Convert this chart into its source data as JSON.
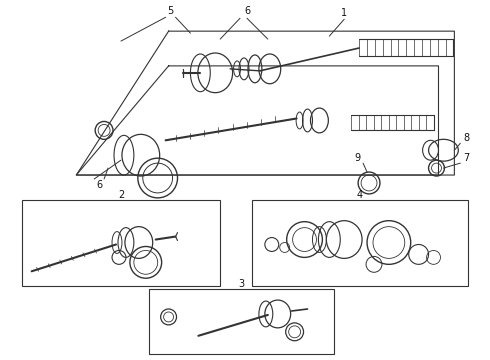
{
  "bg": "#f5f5f5",
  "lc": "#333333",
  "tc": "#111111",
  "fig_w": 4.9,
  "fig_h": 3.6,
  "dpi": 100
}
